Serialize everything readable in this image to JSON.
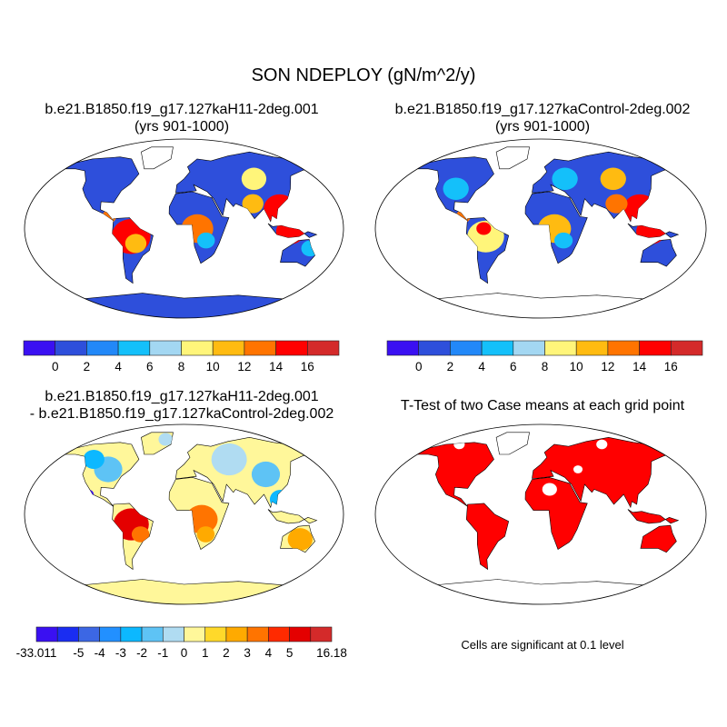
{
  "title": "SON NDEPLOY (gN/m^2/y)",
  "panels": [
    {
      "id": "case1",
      "title": "b.e21.B1850.f19_g17.127kaH11-2deg.001",
      "subtitle": "(yrs 901-1000)"
    },
    {
      "id": "case2",
      "title": "b.e21.B1850.f19_g17.127kaControl-2deg.002",
      "subtitle": "(yrs 901-1000)"
    },
    {
      "id": "diff",
      "title": "b.e21.B1850.f19_g17.127kaH11-2deg.001",
      "subtitle": "- b.e21.B1850.f19_g17.127kaControl-2deg.002"
    },
    {
      "id": "ttest",
      "title": "T-Test of two Case means at each grid point",
      "subtitle": ""
    }
  ],
  "colorbar_abs": {
    "colors": [
      "#3a10f2",
      "#2e4fdb",
      "#2288f8",
      "#14c0fa",
      "#a3d7f2",
      "#fff57a",
      "#ffbb11",
      "#ff7400",
      "#ff0000",
      "#d42a2a"
    ],
    "labels": [
      "0",
      "2",
      "4",
      "6",
      "8",
      "10",
      "12",
      "14",
      "16"
    ]
  },
  "colorbar_diff": {
    "colors": [
      "#3a10f2",
      "#1a2df2",
      "#3c67e4",
      "#2290ff",
      "#0cb8ff",
      "#5ec3f5",
      "#b0dcf2",
      "#fff79a",
      "#ffd92a",
      "#ffaa00",
      "#ff7400",
      "#ff2a00",
      "#e40000",
      "#d42a2a"
    ],
    "labels": [
      "-33.011",
      "-5",
      "-4",
      "-3",
      "-2",
      "-1",
      "0",
      "1",
      "2",
      "3",
      "4",
      "5",
      "16.18"
    ]
  },
  "ttest_color": "#ff0000",
  "footnote": "Cells are significant at 0.1 level"
}
